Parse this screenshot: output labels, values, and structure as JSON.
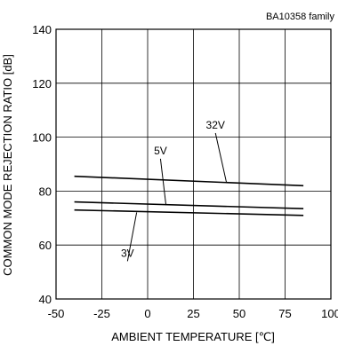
{
  "chart_data": {
    "type": "line",
    "title": "",
    "note": "BA10358  family",
    "xlabel": "AMBIENT TEMPERATURE [℃]",
    "ylabel": "COMMON MODE REJECTION RATIO [dB]",
    "xlim": [
      -50,
      100
    ],
    "ylim": [
      40,
      140
    ],
    "xticks": [
      -50,
      -25,
      0,
      25,
      50,
      75,
      100
    ],
    "yticks": [
      40,
      60,
      80,
      100,
      120,
      140
    ],
    "grid": true,
    "legend": "none",
    "series": [
      {
        "name": "32V",
        "x": [
          -40,
          85
        ],
        "y": [
          85.5,
          82
        ]
      },
      {
        "name": "5V",
        "x": [
          -40,
          85
        ],
        "y": [
          76,
          73.5
        ]
      },
      {
        "name": "3V",
        "x": [
          -40,
          85
        ],
        "y": [
          73,
          71
        ]
      }
    ],
    "annotations": [
      {
        "text": "32V",
        "label_x": 37,
        "label_y": 102.5,
        "point_x": 43,
        "point_y": 83.2
      },
      {
        "text": "5V",
        "label_x": 7,
        "label_y": 93,
        "point_x": 10,
        "point_y": 74.8
      },
      {
        "text": "3V",
        "label_x": -11,
        "label_y": 55,
        "point_x": -6,
        "point_y": 72.1
      }
    ]
  }
}
